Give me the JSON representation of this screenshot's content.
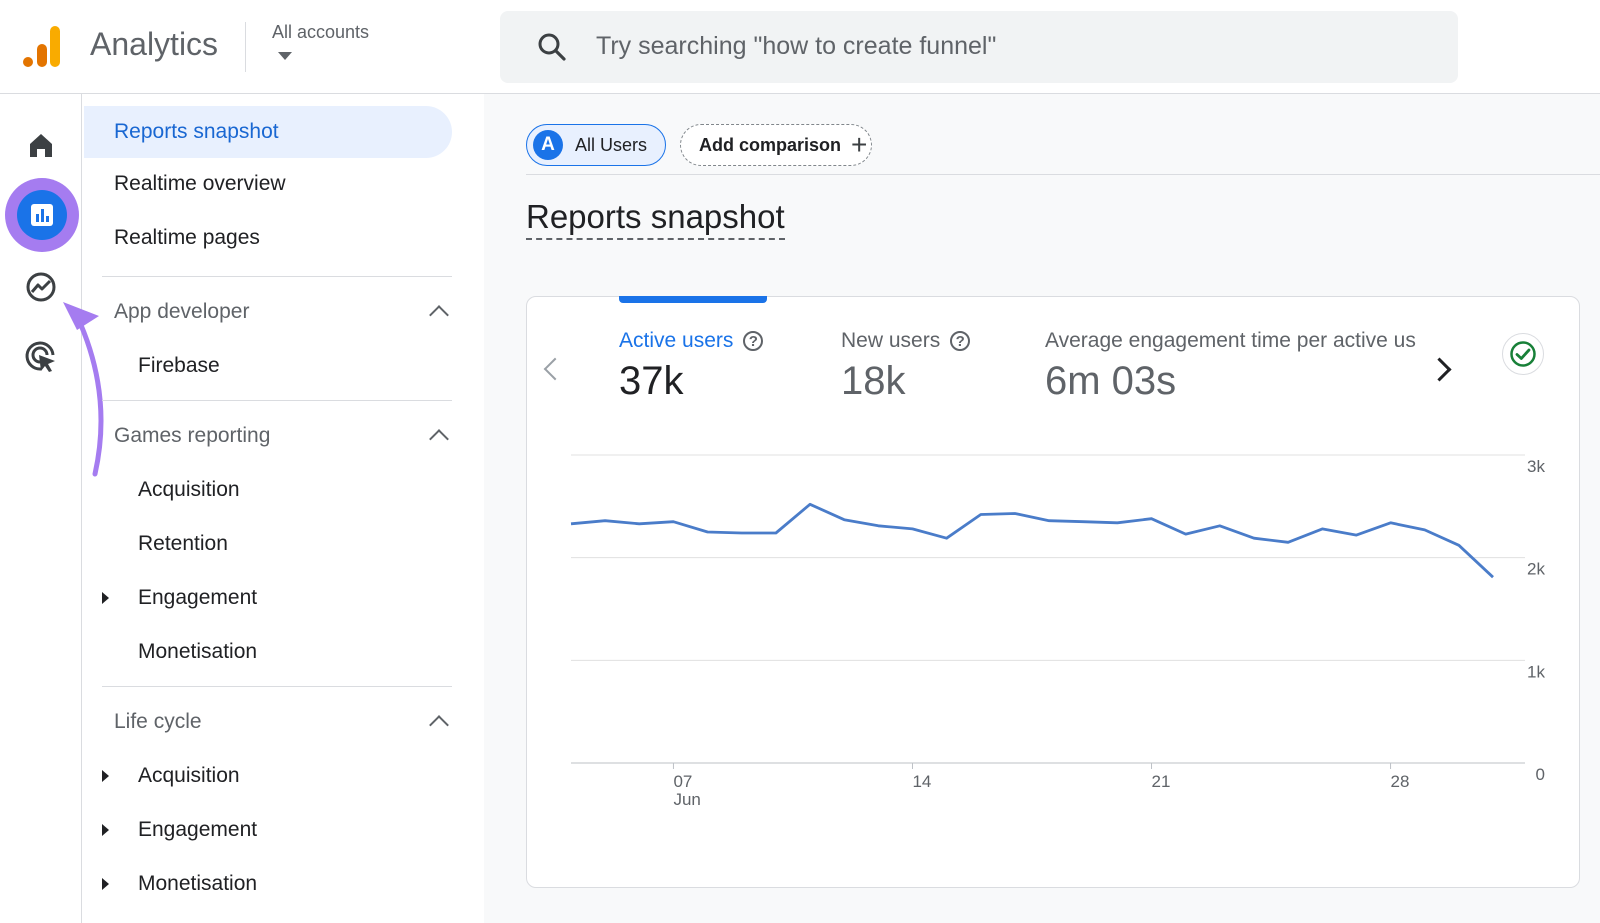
{
  "header": {
    "app_title": "Analytics",
    "accounts_label": "All accounts",
    "search_placeholder": "Try searching \"how to create funnel\""
  },
  "rail": {
    "items": [
      "home-icon",
      "reports-icon",
      "explore-icon",
      "advertising-icon"
    ],
    "active": "reports-icon",
    "annotation_color": "#a57cf0"
  },
  "nav": {
    "reports_snapshot": "Reports snapshot",
    "realtime_overview": "Realtime overview",
    "realtime_pages": "Realtime pages",
    "app_developer": "App developer",
    "firebase": "Firebase",
    "games_reporting": "Games reporting",
    "games_items": [
      "Acquisition",
      "Retention",
      "Engagement",
      "Monetisation"
    ],
    "life_cycle": "Life cycle",
    "life_items": [
      "Acquisition",
      "Engagement",
      "Monetisation"
    ]
  },
  "main": {
    "segment_avatar": "A",
    "segment_label": "All Users",
    "add_comparison": "Add comparison",
    "page_title": "Reports snapshot",
    "metrics": [
      {
        "label": "Active users",
        "value": "37k"
      },
      {
        "label": "New users",
        "value": "18k"
      },
      {
        "label": "Average engagement time per active us",
        "value": "6m 03s"
      }
    ]
  },
  "colors": {
    "accent": "#1a73e8",
    "line": "#4a7cc9",
    "check": "#188038"
  },
  "chart_data": {
    "type": "line",
    "series": [
      {
        "values": [
          2330,
          2360,
          2330,
          2350,
          2250,
          2240,
          2240,
          2520,
          2370,
          2310,
          2280,
          2190,
          2420,
          2430,
          2360,
          2350,
          2340,
          2380,
          2230,
          2310,
          2190,
          2150,
          2280,
          2220,
          2340,
          2270,
          2120,
          1810
        ]
      }
    ],
    "x_ticks": [
      {
        "label": "07",
        "sub": "Jun",
        "index": 3
      },
      {
        "label": "14",
        "index": 10
      },
      {
        "label": "21",
        "index": 17
      },
      {
        "label": "28",
        "index": 24
      }
    ],
    "y_ticks": [
      "0",
      "1k",
      "2k",
      "3k"
    ],
    "ylim": [
      0,
      3000
    ],
    "grid": true
  }
}
